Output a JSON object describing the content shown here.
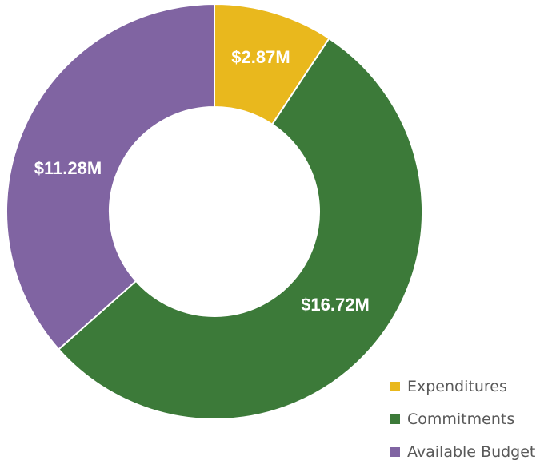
{
  "chart_data": {
    "type": "pie",
    "variant": "donut",
    "title": "",
    "categories": [
      "Expenditures",
      "Commitments",
      "Available Budget"
    ],
    "values": [
      2.87,
      16.72,
      11.28
    ],
    "data_labels": [
      "$2.87M",
      "$16.72M",
      "$11.28M"
    ],
    "colors": [
      "#E9B81D",
      "#3C7A39",
      "#8064A2"
    ],
    "legend_placement": "bottom-right",
    "start_angle": "top",
    "direction": "clockwise"
  }
}
